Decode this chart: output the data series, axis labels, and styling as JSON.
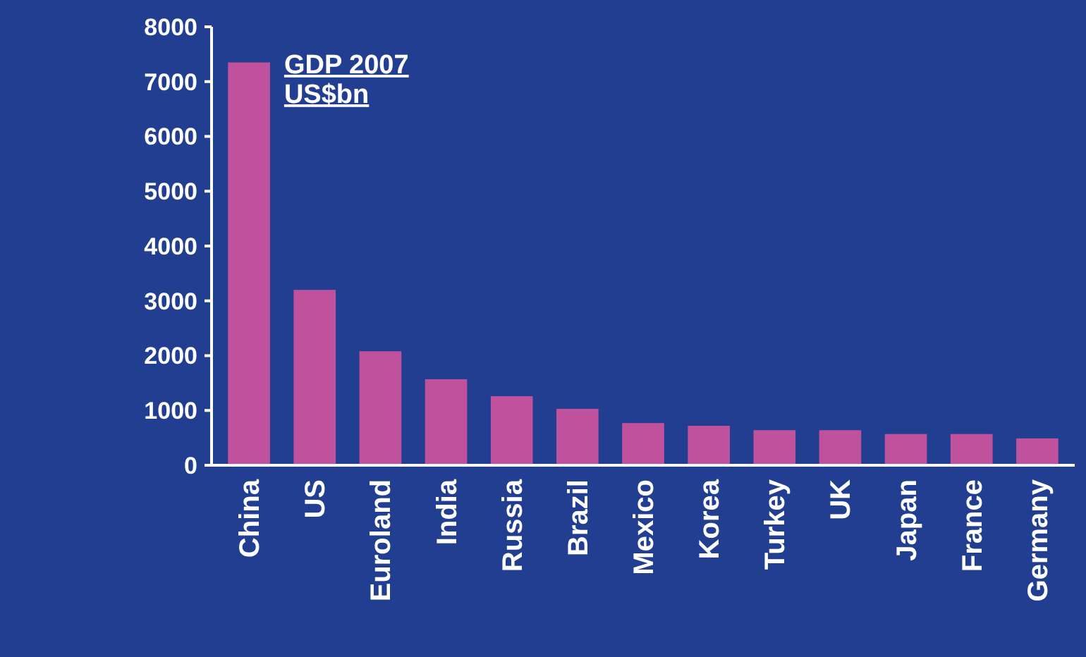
{
  "chart_data": {
    "type": "bar",
    "annotations": [
      "GDP 2007",
      "US$bn"
    ],
    "categories": [
      "China",
      "US",
      "Euroland",
      "India",
      "Russia",
      "Brazil",
      "Mexico",
      "Korea",
      "Turkey",
      "UK",
      "Japan",
      "France",
      "Germany"
    ],
    "values": [
      7350,
      3200,
      2080,
      1570,
      1260,
      1030,
      770,
      720,
      640,
      640,
      570,
      570,
      490
    ],
    "color": "#c0519c",
    "ylim": [
      0,
      8000
    ],
    "yticks": [
      0,
      1000,
      2000,
      3000,
      4000,
      5000,
      6000,
      7000,
      8000
    ],
    "grid": false
  }
}
